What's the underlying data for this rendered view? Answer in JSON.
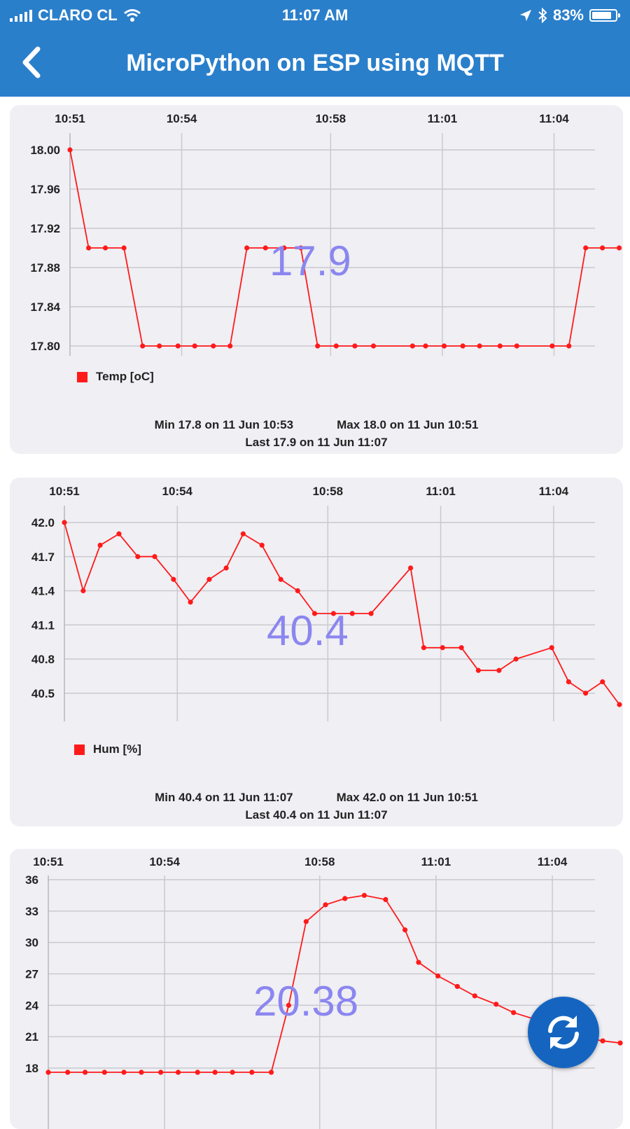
{
  "status_bar": {
    "carrier": "CLARO CL",
    "time": "11:07 AM",
    "battery": "83%",
    "battery_level": 0.83,
    "icons": [
      "signal-icon",
      "wifi-icon",
      "location-arrow-icon",
      "bluetooth-icon",
      "battery-icon"
    ]
  },
  "header": {
    "title": "MicroPython on ESP using MQTT",
    "back_icon": "chevron-left-icon"
  },
  "colors": {
    "accent": "#2a7fcb",
    "series": "#ff1a1a",
    "big_value": "#8b86ef",
    "fab": "#1565c0"
  },
  "cards": [
    {
      "big_value": "17.9",
      "legend": "Temp [oC]",
      "stats": {
        "min": "Min 17.8 on 11 Jun 10:53",
        "max": "Max 18.0 on 11 Jun 10:51",
        "last": "Last 17.9 on 11 Jun 11:07"
      }
    },
    {
      "big_value": "40.4",
      "legend": "Hum [%]",
      "stats": {
        "min": "Min 40.4 on 11 Jun 11:07",
        "max": "Max 42.0 on 11 Jun 10:51",
        "last": "Last 40.4 on 11 Jun 11:07"
      }
    },
    {
      "big_value": "20.38",
      "legend": "",
      "stats": null
    }
  ],
  "refresh_button": {
    "icon": "refresh-icon"
  },
  "chart_data": [
    {
      "type": "line",
      "title": "",
      "xlabel": "",
      "ylabel": "",
      "x_ticks": [
        "10:51",
        "10:54",
        "10:58",
        "11:01",
        "11:04"
      ],
      "x_tick_minutes": [
        0,
        3,
        7,
        10,
        13
      ],
      "x_range_minutes": [
        0,
        14.1
      ],
      "y_ticks": [
        "18.00",
        "17.96",
        "17.92",
        "17.88",
        "17.84",
        "17.80"
      ],
      "ylim": [
        17.8,
        18.0
      ],
      "grid": true,
      "legend": "bottom-left",
      "series": [
        {
          "name": "Temp [oC]",
          "x_minutes": [
            0,
            0.5,
            0.95,
            1.45,
            1.95,
            2.4,
            2.9,
            3.35,
            3.85,
            4.3,
            4.75,
            5.25,
            5.75,
            6.2,
            6.65,
            7.15,
            7.65,
            8.15,
            9.2,
            9.55,
            10.05,
            10.55,
            11.0,
            11.55,
            12.0,
            12.95,
            13.4,
            13.85,
            14.3,
            14.75
          ],
          "values": [
            18.0,
            17.9,
            17.9,
            17.9,
            17.8,
            17.8,
            17.8,
            17.8,
            17.8,
            17.8,
            17.9,
            17.9,
            17.9,
            17.9,
            17.8,
            17.8,
            17.8,
            17.8,
            17.8,
            17.8,
            17.8,
            17.8,
            17.8,
            17.8,
            17.8,
            17.8,
            17.8,
            17.9,
            17.9,
            17.9
          ]
        }
      ]
    },
    {
      "type": "line",
      "title": "",
      "xlabel": "",
      "ylabel": "",
      "x_ticks": [
        "10:51",
        "10:54",
        "10:58",
        "11:01",
        "11:04"
      ],
      "x_tick_minutes": [
        0,
        3,
        7,
        10,
        13
      ],
      "x_range_minutes": [
        0,
        14.1
      ],
      "y_ticks": [
        "42.0",
        "41.7",
        "41.4",
        "41.1",
        "40.8",
        "40.5"
      ],
      "ylim": [
        40.4,
        42.0
      ],
      "grid": true,
      "legend": "bottom-left",
      "series": [
        {
          "name": "Hum [%]",
          "x_minutes": [
            0,
            0.5,
            0.95,
            1.45,
            1.95,
            2.4,
            2.9,
            3.35,
            3.85,
            4.3,
            4.75,
            5.25,
            5.75,
            6.2,
            6.65,
            7.15,
            7.65,
            8.15,
            9.2,
            9.55,
            10.05,
            10.55,
            11.0,
            11.55,
            12.0,
            12.95,
            13.4,
            13.85,
            14.3,
            14.75
          ],
          "values": [
            42.0,
            41.4,
            41.8,
            41.9,
            41.7,
            41.7,
            41.5,
            41.3,
            41.5,
            41.6,
            41.9,
            41.8,
            41.5,
            41.4,
            41.2,
            41.2,
            41.2,
            41.2,
            41.6,
            40.9,
            40.9,
            40.9,
            40.7,
            40.7,
            40.8,
            40.9,
            40.6,
            40.5,
            40.6,
            40.4
          ]
        }
      ]
    },
    {
      "type": "line",
      "title": "",
      "xlabel": "",
      "ylabel": "",
      "x_ticks": [
        "10:51",
        "10:54",
        "10:58",
        "11:01",
        "11:04"
      ],
      "x_tick_minutes": [
        0,
        3,
        7,
        10,
        13
      ],
      "x_range_minutes": [
        0,
        14.1
      ],
      "y_ticks": [
        "36",
        "33",
        "30",
        "27",
        "24",
        "21",
        "18"
      ],
      "ylim": [
        17,
        36
      ],
      "grid": true,
      "legend": "none",
      "series": [
        {
          "name": "",
          "x_minutes": [
            0,
            0.5,
            0.95,
            1.45,
            1.95,
            2.4,
            2.9,
            3.35,
            3.85,
            4.3,
            4.75,
            5.25,
            5.75,
            6.2,
            6.65,
            7.15,
            7.65,
            8.15,
            8.7,
            9.2,
            9.55,
            10.05,
            10.55,
            11.0,
            11.55,
            12.0,
            12.95,
            13.4,
            13.85,
            14.3,
            14.75
          ],
          "values": [
            17.6,
            17.6,
            17.6,
            17.6,
            17.6,
            17.6,
            17.6,
            17.6,
            17.6,
            17.6,
            17.6,
            17.6,
            17.6,
            24.0,
            32.0,
            33.6,
            34.2,
            34.5,
            34.1,
            31.2,
            28.1,
            26.8,
            25.8,
            24.9,
            24.1,
            23.3,
            22.2,
            21.4,
            20.9,
            20.6,
            20.4
          ]
        }
      ]
    }
  ]
}
